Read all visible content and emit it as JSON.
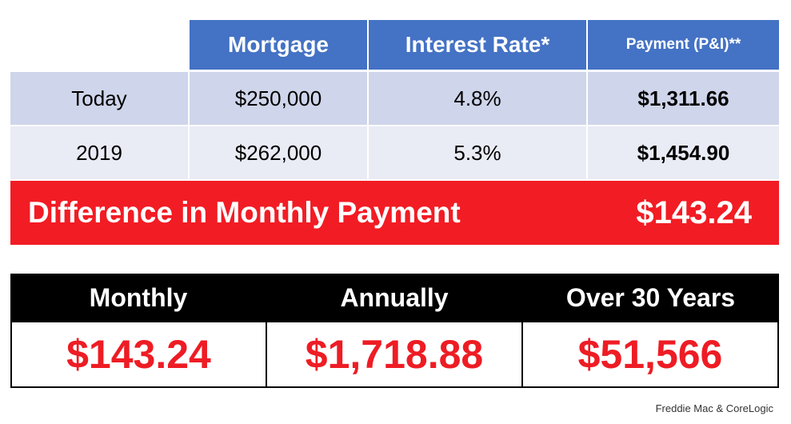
{
  "table": {
    "headers": {
      "mortgage": "Mortgage",
      "rate": "Interest Rate*",
      "payment": "Payment (P&I)**"
    },
    "rows": [
      {
        "label": "Today",
        "mortgage": "$250,000",
        "rate": "4.8%",
        "payment": "$1,311.66"
      },
      {
        "label": "2019",
        "mortgage": "$262,000",
        "rate": "5.3%",
        "payment": "$1,454.90"
      }
    ]
  },
  "difference": {
    "label": "Difference in Monthly Payment",
    "value": "$143.24"
  },
  "summary": {
    "columns": [
      {
        "label": "Monthly",
        "value": "$143.24"
      },
      {
        "label": "Annually",
        "value": "$1,718.88"
      },
      {
        "label": "Over 30 Years",
        "value": "$51,566"
      }
    ]
  },
  "source": "Freddie Mac & CoreLogic",
  "colors": {
    "header_blue": "#4472c4",
    "accent_red": "#f21c24",
    "row_dark": "#cfd5ea",
    "row_light": "#e9ebf5"
  }
}
